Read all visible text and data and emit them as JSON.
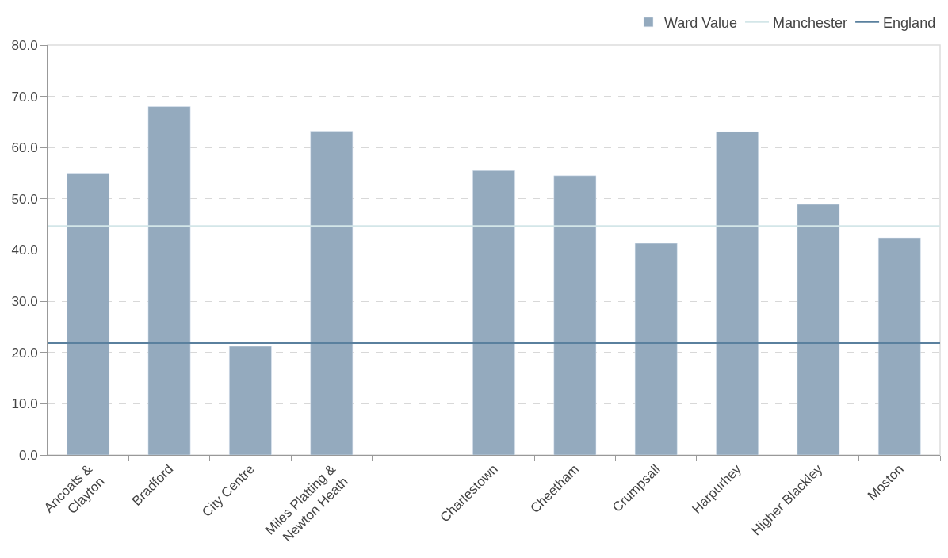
{
  "chart_data": {
    "type": "bar",
    "categories": [
      "Ancoats &\nClayton",
      "Bradford",
      "City Centre",
      "Miles Platting &\nNewton Heath",
      null,
      "Charlestown",
      "Cheetham",
      "Crumpsall",
      "Harpurhey",
      "Higher Blackley",
      "Moston"
    ],
    "series": [
      {
        "name": "Ward Value",
        "color": "#94aabe",
        "values": [
          55.0,
          68.0,
          21.2,
          63.2,
          null,
          55.5,
          54.5,
          41.3,
          63.1,
          48.9,
          42.4
        ]
      }
    ],
    "ref_lines": [
      {
        "axis": "y",
        "value": 44.7,
        "label": "Manchester",
        "color": "#d3e6e8"
      },
      {
        "axis": "y",
        "value": 21.8,
        "label": "England",
        "color": "#5a809e"
      }
    ],
    "ylim": [
      0,
      80
    ],
    "yticks": [
      {
        "value": 0,
        "label": "0.0"
      },
      {
        "value": 10,
        "label": "10.0"
      },
      {
        "value": 20,
        "label": "20.0"
      },
      {
        "value": 30,
        "label": "30.0"
      },
      {
        "value": 40,
        "label": "40.0"
      },
      {
        "value": 50,
        "label": "50.0"
      },
      {
        "value": 60,
        "label": "60.0"
      },
      {
        "value": 70,
        "label": "70.0"
      },
      {
        "value": 80,
        "label": "80.0"
      }
    ],
    "grid": "y",
    "legend": "top right"
  }
}
